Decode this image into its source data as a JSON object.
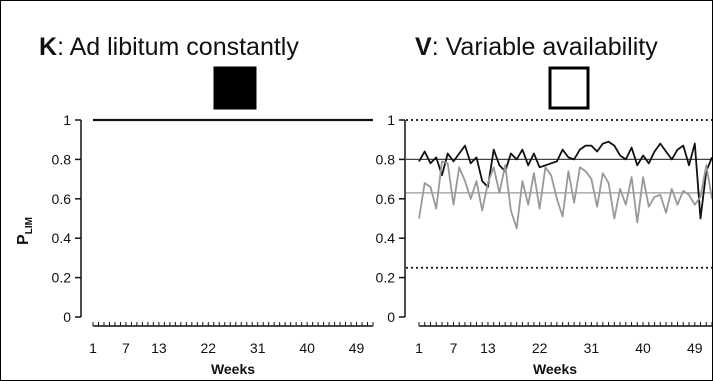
{
  "chart_data": [
    {
      "panel_key": "K",
      "title": "Ad libitum constantly",
      "type": "line",
      "ylabel": "P",
      "ylabel_sub": "LIM",
      "xlabel": "Weeks",
      "x_ticks": [
        "1",
        "7",
        "13",
        "22",
        "31",
        "40",
        "49"
      ],
      "y_ticks": [
        "0",
        "0.2",
        "0.4",
        "0.6",
        "0.8",
        "1"
      ],
      "xlim": [
        1,
        52
      ],
      "ylim": [
        0,
        1
      ],
      "swatch_fill": "#000000",
      "reference_lines": [],
      "series": [
        {
          "color": "#111111",
          "x": [
            1,
            52
          ],
          "values": [
            1.0,
            1.0
          ]
        }
      ]
    },
    {
      "panel_key": "V",
      "title": "Variable availability",
      "type": "line",
      "ylabel": "",
      "xlabel": "Weeks",
      "x_ticks": [
        "1",
        "7",
        "13",
        "22",
        "31",
        "40",
        "49"
      ],
      "y_ticks": [
        "0",
        "0.2",
        "0.4",
        "0.6",
        "0.8",
        "1"
      ],
      "xlim": [
        1,
        52
      ],
      "ylim": [
        0,
        1
      ],
      "swatch_fill": "#ffffff",
      "reference_lines": [
        {
          "y": 1.0,
          "style": "dotted",
          "color": "#111111"
        },
        {
          "y": 0.25,
          "style": "dotted",
          "color": "#111111"
        },
        {
          "y": 0.8,
          "style": "solid",
          "color": "#444444"
        },
        {
          "y": 0.63,
          "style": "solid",
          "color": "#999999"
        }
      ],
      "series": [
        {
          "color": "#111111",
          "x": [
            1,
            2,
            3,
            4,
            5,
            6,
            7,
            8,
            9,
            10,
            11,
            12,
            13,
            14,
            15,
            16,
            17,
            18,
            19,
            20,
            21,
            22,
            23,
            24,
            25,
            26,
            27,
            28,
            29,
            30,
            31,
            32,
            33,
            34,
            35,
            36,
            37,
            38,
            39,
            40,
            41,
            42,
            43,
            44,
            45,
            46,
            47,
            48,
            49,
            50,
            51,
            52
          ],
          "values": [
            0.79,
            0.84,
            0.78,
            0.81,
            0.72,
            0.83,
            0.79,
            0.83,
            0.87,
            0.78,
            0.81,
            0.69,
            0.66,
            0.85,
            0.77,
            0.74,
            0.83,
            0.8,
            0.85,
            0.77,
            0.83,
            0.76,
            0.77,
            0.78,
            0.79,
            0.85,
            0.81,
            0.8,
            0.85,
            0.87,
            0.87,
            0.84,
            0.88,
            0.89,
            0.87,
            0.82,
            0.8,
            0.86,
            0.77,
            0.82,
            0.78,
            0.84,
            0.88,
            0.84,
            0.8,
            0.85,
            0.87,
            0.77,
            0.88,
            0.5,
            0.74,
            0.81
          ]
        },
        {
          "color": "#999999",
          "x": [
            1,
            2,
            3,
            4,
            5,
            6,
            7,
            8,
            9,
            10,
            11,
            12,
            13,
            14,
            15,
            16,
            17,
            18,
            19,
            20,
            21,
            22,
            23,
            24,
            25,
            26,
            27,
            28,
            29,
            30,
            31,
            32,
            33,
            34,
            35,
            36,
            37,
            38,
            39,
            40,
            41,
            42,
            43,
            44,
            45,
            46,
            47,
            48,
            49,
            50,
            51,
            52
          ],
          "values": [
            0.5,
            0.68,
            0.66,
            0.55,
            0.79,
            0.78,
            0.57,
            0.76,
            0.69,
            0.6,
            0.69,
            0.54,
            0.68,
            0.76,
            0.63,
            0.77,
            0.54,
            0.45,
            0.69,
            0.57,
            0.73,
            0.55,
            0.76,
            0.72,
            0.6,
            0.51,
            0.74,
            0.58,
            0.76,
            0.74,
            0.7,
            0.56,
            0.73,
            0.68,
            0.5,
            0.65,
            0.57,
            0.71,
            0.48,
            0.71,
            0.56,
            0.61,
            0.62,
            0.53,
            0.65,
            0.57,
            0.64,
            0.62,
            0.57,
            0.61,
            0.77,
            0.6
          ]
        }
      ]
    }
  ]
}
